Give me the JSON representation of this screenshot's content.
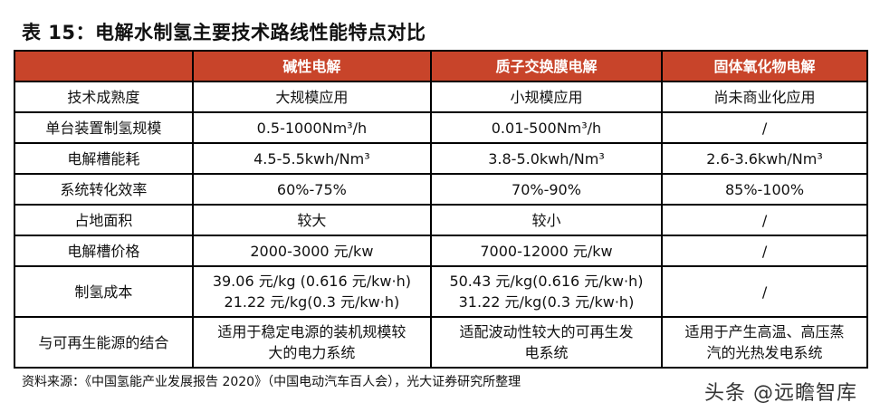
{
  "title": "表 15：电解水制氢主要技术路线性能特点对比",
  "table": {
    "headers": [
      "",
      "碱性电解",
      "质子交换膜电解",
      "固体氧化物电解"
    ],
    "rows": [
      {
        "label": "技术成熟度",
        "cells": [
          "大规模应用",
          "小规模应用",
          "尚未商业化应用"
        ]
      },
      {
        "label": "单台装置制氢规模",
        "cells": [
          "0.5-1000Nm³/h",
          "0.01-500Nm³/h",
          "/"
        ]
      },
      {
        "label": "电解槽能耗",
        "cells": [
          "4.5-5.5kwh/Nm³",
          "3.8-5.0kwh/Nm³",
          "2.6-3.6kwh/Nm³"
        ]
      },
      {
        "label": "系统转化效率",
        "cells": [
          "60%-75%",
          "70%-90%",
          "85%-100%"
        ]
      },
      {
        "label": "占地面积",
        "cells": [
          "较大",
          "较小",
          "/"
        ]
      },
      {
        "label": "电解槽价格",
        "cells": [
          "2000-3000 元/kw",
          "7000-12000 元/kw",
          "/"
        ]
      },
      {
        "label": "制氢成本",
        "cells": [
          [
            "39.06 元/kg (0.616 元/kw·h)",
            "21.22 元/kg(0.3 元/kw·h)"
          ],
          [
            "50.43 元/kg(0.616 元/kw·h)",
            "31.22 元/kg(0.3 元/kw·h)"
          ],
          [
            "/"
          ]
        ]
      },
      {
        "label": "与可再生能源的结合",
        "cells": [
          [
            "适用于稳定电源的装机规模较",
            "大的电力系统"
          ],
          [
            "适配波动性较大的可再生发",
            "电系统"
          ],
          [
            "适用于产生高温、高压蒸",
            "汽的光热发电系统"
          ]
        ]
      }
    ]
  },
  "source": "资料来源：《中国氢能产业发展报告 2020》（中国电动汽车百人会），光大证券研究所整理",
  "watermark": "头条 @远瞻智库",
  "colors": {
    "header_bg": "#c8442a",
    "header_text": "#ffffff",
    "border": "#000000"
  }
}
